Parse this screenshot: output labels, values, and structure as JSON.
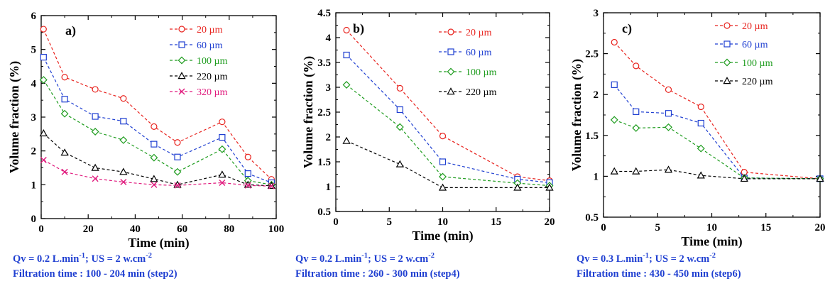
{
  "chart_data": [
    {
      "type": "line",
      "panel_label": "a)",
      "xlabel": "Time (min)",
      "ylabel": "Volume fraction (%)",
      "xlim": [
        0,
        100
      ],
      "ylim": [
        0,
        6
      ],
      "xticks": [
        "0",
        "20",
        "40",
        "60",
        "80",
        "100"
      ],
      "yticks": [
        "0",
        "1",
        "2",
        "3",
        "4",
        "5",
        "6"
      ],
      "legend_position": "top-right",
      "series": [
        {
          "name": "20 µm",
          "color": "#e8231e",
          "marker": "circle",
          "x": [
            1,
            10,
            23,
            35,
            48,
            58,
            77,
            88,
            98
          ],
          "y": [
            5.6,
            4.18,
            3.82,
            3.55,
            2.72,
            2.25,
            2.86,
            1.82,
            1.16
          ]
        },
        {
          "name": "60 µm",
          "color": "#1f3fd1",
          "marker": "square",
          "x": [
            1,
            10,
            23,
            35,
            48,
            58,
            77,
            88,
            98
          ],
          "y": [
            4.77,
            3.53,
            3.02,
            2.88,
            2.2,
            1.82,
            2.4,
            1.33,
            1.06
          ]
        },
        {
          "name": "100 µm",
          "color": "#1e9c1e",
          "marker": "diamond",
          "x": [
            1,
            10,
            23,
            35,
            48,
            58,
            77,
            88,
            98
          ],
          "y": [
            4.1,
            3.1,
            2.57,
            2.32,
            1.8,
            1.38,
            2.05,
            1.12,
            1.0
          ]
        },
        {
          "name": "220 µm",
          "color": "#000000",
          "marker": "triangle",
          "x": [
            1,
            10,
            23,
            35,
            48,
            58,
            77,
            88,
            98
          ],
          "y": [
            2.52,
            1.95,
            1.5,
            1.38,
            1.17,
            1.0,
            1.3,
            1.0,
            0.97
          ]
        },
        {
          "name": "320 µm",
          "color": "#e0187c",
          "marker": "x",
          "x": [
            1,
            10,
            23,
            35,
            48,
            58,
            77,
            88,
            98
          ],
          "y": [
            1.73,
            1.38,
            1.18,
            1.08,
            1.0,
            0.98,
            1.06,
            0.98,
            0.96
          ]
        }
      ],
      "caption_line1_main": "Qv = 0.2 L.min",
      "caption_line1_sup1": "-1",
      "caption_line1_mid": "; US = 2 w.cm",
      "caption_line1_sup2": "-2",
      "caption_line2": "Filtration time : 100 - 204 min (step2)"
    },
    {
      "type": "line",
      "panel_label": "b)",
      "xlabel": "Time (min)",
      "ylabel": "Volume fraction (%)",
      "xlim": [
        0,
        20
      ],
      "ylim": [
        0.5,
        4.5
      ],
      "xticks": [
        "0",
        "5",
        "10",
        "15",
        "20"
      ],
      "yticks": [
        "0.5",
        "1",
        "1.5",
        "2",
        "2.5",
        "3",
        "3.5",
        "4",
        "4.5"
      ],
      "legend_position": "top-right",
      "series": [
        {
          "name": "20 µm",
          "color": "#e8231e",
          "marker": "circle",
          "x": [
            1,
            6,
            10,
            17,
            20
          ],
          "y": [
            4.15,
            2.98,
            2.02,
            1.2,
            1.12
          ]
        },
        {
          "name": "60 µm",
          "color": "#1f3fd1",
          "marker": "square",
          "x": [
            1,
            6,
            10,
            17,
            20
          ],
          "y": [
            3.65,
            2.55,
            1.5,
            1.15,
            1.08
          ]
        },
        {
          "name": "100 µm",
          "color": "#1e9c1e",
          "marker": "diamond",
          "x": [
            1,
            6,
            10,
            17,
            20
          ],
          "y": [
            3.05,
            2.2,
            1.2,
            1.07,
            1.02
          ]
        },
        {
          "name": "220 µm",
          "color": "#000000",
          "marker": "triangle",
          "x": [
            1,
            6,
            10,
            17,
            20
          ],
          "y": [
            1.92,
            1.45,
            0.98,
            0.98,
            0.98
          ]
        }
      ],
      "caption_line1_main": "Qv = 0.2 L.min",
      "caption_line1_sup1": "-1",
      "caption_line1_mid": "; US = 2 w.cm",
      "caption_line1_sup2": "-2",
      "caption_line2": "Filtration time : 260 - 300 min (step4)"
    },
    {
      "type": "line",
      "panel_label": "c)",
      "xlabel": "Time (min)",
      "ylabel": "Volume fraction (%)",
      "xlim": [
        0,
        20
      ],
      "ylim": [
        0.5,
        3
      ],
      "xticks": [
        "0",
        "5",
        "10",
        "15",
        "20"
      ],
      "yticks": [
        "0.5",
        "1",
        "1.5",
        "2",
        "2.5",
        "3"
      ],
      "legend_position": "top-right",
      "series": [
        {
          "name": "20 µm",
          "color": "#e8231e",
          "marker": "circle",
          "x": [
            1,
            3,
            6,
            9,
            13,
            20
          ],
          "y": [
            2.64,
            2.35,
            2.06,
            1.85,
            1.05,
            0.97
          ]
        },
        {
          "name": "60 µm",
          "color": "#1f3fd1",
          "marker": "square",
          "x": [
            1,
            3,
            6,
            9,
            13,
            20
          ],
          "y": [
            2.12,
            1.79,
            1.77,
            1.65,
            0.98,
            0.97
          ]
        },
        {
          "name": "100 µm",
          "color": "#1e9c1e",
          "marker": "diamond",
          "x": [
            1,
            3,
            6,
            9,
            13,
            20
          ],
          "y": [
            1.69,
            1.59,
            1.6,
            1.34,
            0.98,
            0.97
          ]
        },
        {
          "name": "220 µm",
          "color": "#000000",
          "marker": "triangle",
          "x": [
            1,
            3,
            6,
            9,
            13,
            20
          ],
          "y": [
            1.06,
            1.06,
            1.08,
            1.01,
            0.97,
            0.97
          ]
        }
      ],
      "caption_line1_main": "Qv = 0.3 L.min",
      "caption_line1_sup1": "-1",
      "caption_line1_mid": "; US = 2 w.cm",
      "caption_line1_sup2": "-2",
      "caption_line2": "Filtration time : 430 - 450 min (step6)"
    }
  ]
}
